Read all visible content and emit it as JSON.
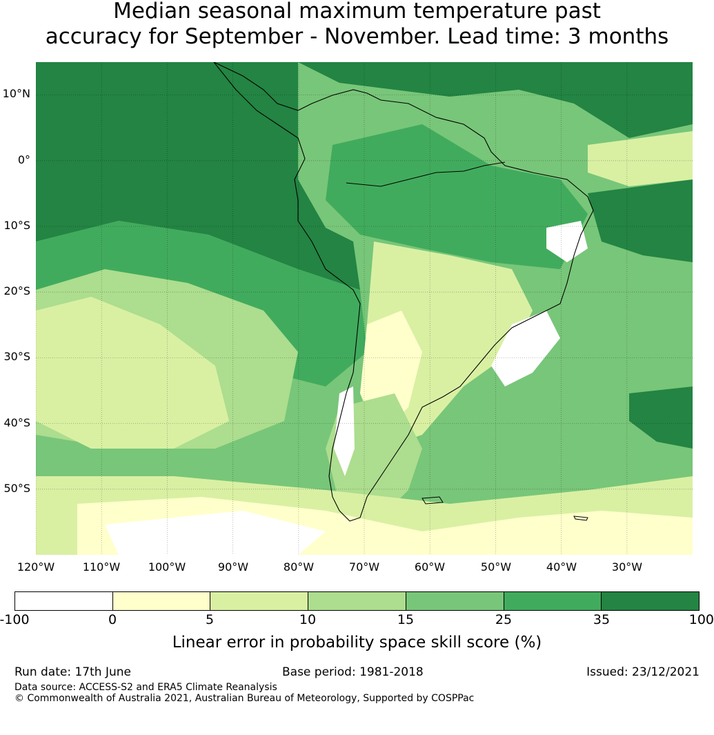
{
  "title": {
    "line1": "Median seasonal maximum temperature past",
    "line2": "accuracy for September - November. Lead time: 3 months"
  },
  "map": {
    "lat_labels": [
      "10°N",
      "0°",
      "10°S",
      "20°S",
      "30°S",
      "40°S",
      "50°S"
    ],
    "lon_labels": [
      "120°W",
      "110°W",
      "100°W",
      "90°W",
      "80°W",
      "70°W",
      "60°W",
      "50°W",
      "40°W",
      "30°W"
    ],
    "lat_range": [
      -60,
      15
    ],
    "lon_range": [
      -125,
      -25
    ],
    "grid": true
  },
  "legend": {
    "label": "Linear error in probability space skill score (%)",
    "ticks": [
      "-100",
      "0",
      "5",
      "10",
      "15",
      "25",
      "35",
      "100"
    ],
    "colors": [
      "#ffffff",
      "#ffffcc",
      "#d9f0a3",
      "#addd8e",
      "#78c679",
      "#41ab5d",
      "#238443"
    ]
  },
  "footer": {
    "run_date": "Run date: 17th June",
    "base_period": "Base period: 1981-2018",
    "issued": "Issued: 23/12/2021",
    "data_source": "Data source: ACCESS-S2 and ERA5 Climate Reanalysis",
    "copyright": "© Commonwealth of Australia 2021, Australian Bureau of Meteorology, Supported by COSPPac"
  }
}
